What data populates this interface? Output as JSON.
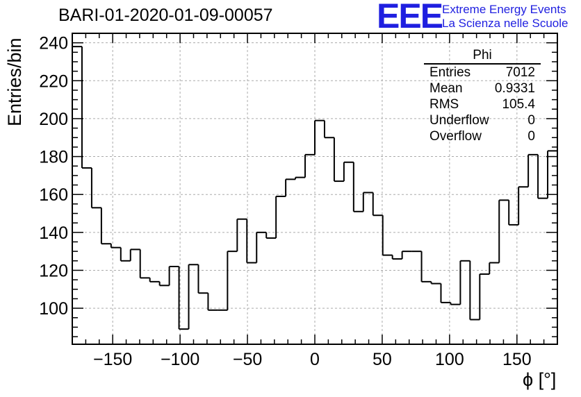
{
  "header": {
    "title": "BARI-01-2020-01-09-00057",
    "logo_text": "EEE",
    "brand_line1": "Extreme Energy Events",
    "brand_line2": "La Scienza nelle Scuole"
  },
  "stats_box": {
    "name": "Phi",
    "rows": [
      {
        "label": "Entries",
        "value": "7012"
      },
      {
        "label": "Mean",
        "value": "0.9331"
      },
      {
        "label": "RMS",
        "value": "105.4"
      },
      {
        "label": "Underflow",
        "value": "0"
      },
      {
        "label": "Overflow",
        "value": "0"
      }
    ]
  },
  "colors": {
    "brand": "#1f1fe0",
    "line": "#000000",
    "grid": "#aaaaaa"
  },
  "chart_data": {
    "type": "histogram",
    "xlabel": "ϕ [°]",
    "ylabel": "Entries/bin",
    "xlim": [
      -180,
      180
    ],
    "ylim": [
      81,
      245
    ],
    "grid": true,
    "x_ticks": [
      -150,
      -100,
      -50,
      0,
      50,
      100,
      150
    ],
    "y_ticks": [
      100,
      120,
      140,
      160,
      180,
      200,
      220,
      240
    ],
    "bin_width": 7.2,
    "bin_edges_start": -180,
    "values": [
      238,
      174,
      153,
      134,
      132,
      125,
      131,
      116,
      114,
      112,
      122,
      89,
      123,
      108,
      99,
      99,
      130,
      147,
      124,
      140,
      137,
      159,
      168,
      169,
      181,
      199,
      190,
      167,
      177,
      151,
      161,
      149,
      128,
      126,
      130,
      130,
      114,
      113,
      103,
      102,
      125,
      94,
      118,
      124,
      157,
      144,
      164,
      181,
      158,
      183
    ]
  }
}
